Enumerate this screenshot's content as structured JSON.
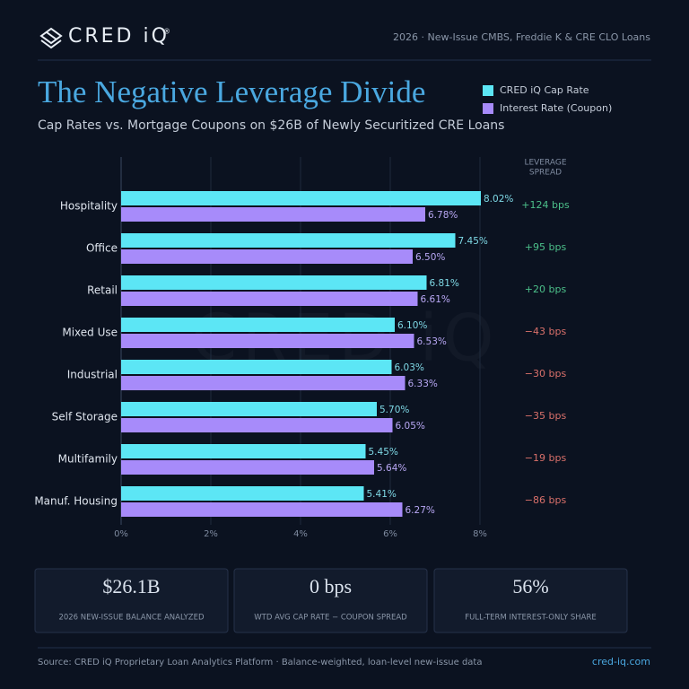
{
  "header": {
    "logo": "CRED iQ",
    "logo_mark": "®",
    "tagline": "2026 · New-Issue CMBS, Freddie K & CRE CLO Loans"
  },
  "chart_data": {
    "type": "bar",
    "orientation": "horizontal",
    "title": "The Negative Leverage Divide",
    "subtitle": "Cap Rates vs. Mortgage Coupons on $26B of Newly Securitized CRE Loans",
    "watermark": "CRED iQ",
    "categories": [
      "Hospitality",
      "Office",
      "Retail",
      "Mixed Use",
      "Industrial",
      "Self Storage",
      "Multifamily",
      "Manuf. Housing"
    ],
    "series": [
      {
        "name": "CRED iQ Cap Rate",
        "color": "#5ce6f5",
        "values": [
          8.02,
          7.45,
          6.81,
          6.1,
          6.03,
          5.7,
          5.45,
          5.41
        ],
        "value_labels": [
          "8.02%",
          "7.45%",
          "6.81%",
          "6.10%",
          "6.03%",
          "5.70%",
          "5.45%",
          "5.41%"
        ]
      },
      {
        "name": "Interest Rate (Coupon)",
        "color": "#a78bfa",
        "values": [
          6.78,
          6.5,
          6.61,
          6.53,
          6.33,
          6.05,
          5.64,
          6.27
        ],
        "value_labels": [
          "6.78%",
          "6.50%",
          "6.61%",
          "6.53%",
          "6.33%",
          "6.05%",
          "5.64%",
          "6.27%"
        ]
      }
    ],
    "xlim": [
      0,
      8
    ],
    "xticks": [
      {
        "value": 0,
        "label": "0%"
      },
      {
        "value": 2,
        "label": "2%"
      },
      {
        "value": 4,
        "label": "4%"
      },
      {
        "value": 6,
        "label": "6%"
      },
      {
        "value": 8,
        "label": "8%"
      }
    ],
    "grid": true,
    "legend": "top-right",
    "leverage_spread": {
      "title_lines": [
        "LEVERAGE",
        "SPREAD"
      ],
      "labels": [
        "+124 bps",
        "+95 bps",
        "+20 bps",
        "−43 bps",
        "−30 bps",
        "−35 bps",
        "−19 bps",
        "−86 bps"
      ],
      "positive_color": "#4cc08a",
      "negative_color": "#d9706a"
    }
  },
  "stats": [
    {
      "value": "$26.1B",
      "label": "2026 NEW-ISSUE BALANCE ANALYZED"
    },
    {
      "value": "0 bps",
      "label": "WTD AVG CAP RATE − COUPON SPREAD"
    },
    {
      "value": "56%",
      "label": "FULL-TERM INTEREST-ONLY SHARE"
    }
  ],
  "footer": {
    "source": "Source: CRED iQ Proprietary Loan Analytics Platform  ·  Balance-weighted, loan-level new-issue data",
    "site": "cred-iq.com"
  }
}
